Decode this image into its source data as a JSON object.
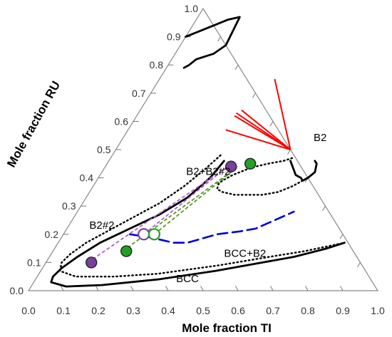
{
  "chart_data": {
    "type": "scatter",
    "subtype": "ternary-phase-diagram",
    "xlabel": "Mole fraction TI",
    "ylabel": "Mole fraction RU",
    "x_ticks": [
      "0.0",
      "0.1",
      "0.2",
      "0.3",
      "0.4",
      "0.5",
      "0.6",
      "0.7",
      "0.8",
      "0.9",
      "1.0"
    ],
    "ru_ticks": [
      "0.0",
      "0.1",
      "0.2",
      "0.3",
      "0.4",
      "0.5",
      "0.6",
      "0.7",
      "0.8",
      "0.9",
      "1.0"
    ],
    "region_labels": [
      {
        "text": "B2",
        "ti": 0.57,
        "ru": 0.53
      },
      {
        "text": "B2+B2#2",
        "ti": 0.31,
        "ru": 0.41
      },
      {
        "text": "B2#2",
        "ti": 0.1,
        "ru": 0.22
      },
      {
        "text": "BCC+B2",
        "ti": 0.56,
        "ru": 0.12
      },
      {
        "text": "BCC",
        "ti": 0.44,
        "ru": 0.03
      }
    ],
    "colors": {
      "tie_lines": "#ff0000",
      "boundary_solid": "#000000",
      "boundary_dotted": "#000000",
      "dashed_boundary": "#0000dd",
      "purple_points": "#7b3f9e",
      "green_points": "#22a022",
      "purple_tie": "#b060d0",
      "green_tie": "#559922"
    },
    "series": [
      {
        "style": "solid",
        "points": [
          [
            0.0,
            0.9
          ],
          [
            0.03,
            0.92
          ],
          [
            0.06,
            0.94
          ],
          [
            0.09,
            0.96
          ],
          [
            0.12,
            0.97
          ],
          [
            0.13,
            0.87
          ],
          [
            0.11,
            0.84
          ],
          [
            0.09,
            0.83
          ],
          [
            0.07,
            0.82
          ],
          [
            0.06,
            0.8
          ],
          [
            0.05,
            0.79
          ]
        ]
      },
      {
        "style": "solid",
        "points": [
          [
            0.33,
            0.46
          ],
          [
            0.32,
            0.4
          ],
          [
            0.29,
            0.33
          ],
          [
            0.24,
            0.27
          ],
          [
            0.18,
            0.22
          ],
          [
            0.12,
            0.17
          ],
          [
            0.08,
            0.12
          ],
          [
            0.055,
            0.08
          ],
          [
            0.045,
            0.05
          ],
          [
            0.05,
            0.03
          ],
          [
            0.1,
            0.015
          ],
          [
            0.2,
            0.02
          ],
          [
            0.35,
            0.04
          ],
          [
            0.5,
            0.07
          ],
          [
            0.62,
            0.1
          ],
          [
            0.7,
            0.12
          ],
          [
            0.78,
            0.15
          ],
          [
            0.82,
            0.17
          ]
        ]
      },
      {
        "style": "solid",
        "points": [
          [
            0.52,
            0.46
          ],
          [
            0.56,
            0.41
          ],
          [
            0.58,
            0.4
          ],
          [
            0.59,
            0.39
          ],
          [
            0.6,
            0.4
          ],
          [
            0.61,
            0.42
          ],
          [
            0.6,
            0.45
          ],
          [
            0.59,
            0.46
          ]
        ]
      },
      {
        "style": "dotted",
        "points": [
          [
            0.31,
            0.48
          ],
          [
            0.29,
            0.43
          ],
          [
            0.26,
            0.37
          ],
          [
            0.22,
            0.31
          ],
          [
            0.17,
            0.26
          ],
          [
            0.12,
            0.21
          ],
          [
            0.08,
            0.17
          ],
          [
            0.055,
            0.13
          ],
          [
            0.045,
            0.1
          ],
          [
            0.055,
            0.07
          ],
          [
            0.11,
            0.05
          ],
          [
            0.22,
            0.05
          ],
          [
            0.34,
            0.06
          ],
          [
            0.5,
            0.09
          ],
          [
            0.63,
            0.12
          ],
          [
            0.72,
            0.14
          ],
          [
            0.82,
            0.17
          ]
        ]
      },
      {
        "style": "dotted",
        "points": [
          [
            0.52,
            0.47
          ],
          [
            0.5,
            0.46
          ],
          [
            0.46,
            0.45
          ],
          [
            0.43,
            0.44
          ],
          [
            0.41,
            0.43
          ],
          [
            0.38,
            0.41
          ],
          [
            0.36,
            0.39
          ],
          [
            0.355,
            0.38
          ],
          [
            0.36,
            0.36
          ],
          [
            0.38,
            0.35
          ],
          [
            0.42,
            0.34
          ],
          [
            0.46,
            0.34
          ],
          [
            0.5,
            0.34
          ],
          [
            0.54,
            0.35
          ],
          [
            0.57,
            0.37
          ],
          [
            0.6,
            0.4
          ]
        ]
      },
      {
        "style": "dashed",
        "points": [
          [
            0.19,
            0.2
          ],
          [
            0.25,
            0.19
          ],
          [
            0.29,
            0.18
          ],
          [
            0.33,
            0.17
          ],
          [
            0.37,
            0.17
          ],
          [
            0.44,
            0.2
          ],
          [
            0.5,
            0.21
          ],
          [
            0.54,
            0.22
          ],
          [
            0.62,
            0.28
          ]
        ]
      },
      {
        "style": "tie",
        "color": "red",
        "lines": [
          [
            [
              0.33,
              0.75
            ],
            [
              0.5,
              0.5
            ]
          ],
          [
            [
              0.29,
              0.64
            ],
            [
              0.5,
              0.5
            ]
          ],
          [
            [
              0.28,
              0.63
            ],
            [
              0.5,
              0.5
            ]
          ],
          [
            [
              0.28,
              0.62
            ],
            [
              0.5,
              0.5
            ]
          ],
          [
            [
              0.28,
              0.57
            ],
            [
              0.5,
              0.5
            ]
          ]
        ]
      },
      {
        "style": "tie",
        "color": "purple",
        "lines": [
          [
            [
              0.12,
              0.1
            ],
            [
              0.35,
              0.44
            ]
          ],
          [
            [
              0.23,
              0.2
            ],
            [
              0.35,
              0.44
            ]
          ]
        ]
      },
      {
        "style": "tie",
        "color": "green",
        "lines": [
          [
            [
              0.2,
              0.14
            ],
            [
              0.38,
              0.44
            ]
          ],
          [
            [
              0.26,
              0.2
            ],
            [
              0.38,
              0.44
            ]
          ]
        ]
      }
    ],
    "points": [
      {
        "ti": 0.13,
        "ru": 0.1,
        "color": "purple",
        "filled": true
      },
      {
        "ti": 0.21,
        "ru": 0.14,
        "color": "green",
        "filled": true
      },
      {
        "ti": 0.23,
        "ru": 0.2,
        "color": "purple",
        "filled": false
      },
      {
        "ti": 0.26,
        "ru": 0.2,
        "color": "green",
        "filled": false
      },
      {
        "ti": 0.36,
        "ru": 0.44,
        "color": "purple",
        "filled": true
      },
      {
        "ti": 0.41,
        "ru": 0.45,
        "color": "green",
        "filled": true
      }
    ]
  }
}
